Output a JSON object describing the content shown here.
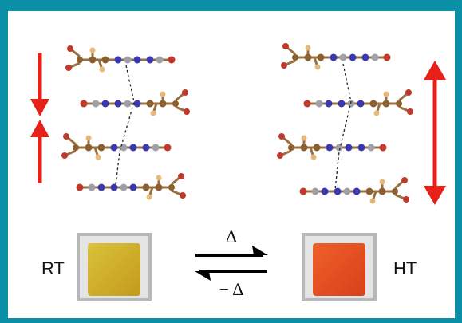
{
  "labels": {
    "left": "RT",
    "right": "HT"
  },
  "equilibrium": {
    "forward": "Δ",
    "reverse": "− Δ"
  }
}
